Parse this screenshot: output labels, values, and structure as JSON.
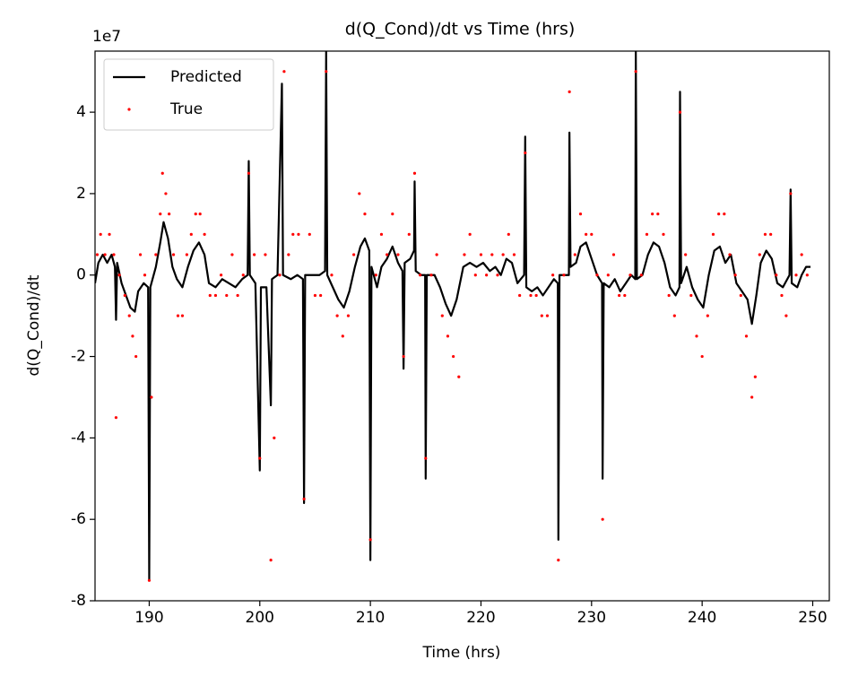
{
  "chart_data": {
    "type": "line",
    "title": "d(Q_Cond)/dt vs Time (hrs)",
    "xlabel": "Time (hrs)",
    "ylabel": "d(Q_Cond)/dt",
    "y_offset_label": "1e7",
    "xlim": [
      185.1,
      251.5
    ],
    "ylim": [
      -8,
      5.5
    ],
    "xticks": [
      190,
      200,
      210,
      220,
      230,
      240,
      250
    ],
    "yticks": [
      -8,
      -6,
      -4,
      -2,
      0,
      2,
      4
    ],
    "legend": "upper left",
    "series": [
      {
        "name": "Predicted",
        "color": "#000000",
        "kind": "line",
        "x": [
          185.1,
          185.4,
          185.8,
          186.2,
          186.6,
          186.9,
          187.0,
          187.1,
          187.5,
          187.9,
          188.3,
          188.7,
          189.0,
          189.5,
          189.9,
          190.0,
          190.1,
          190.6,
          191.0,
          191.3,
          191.7,
          192.1,
          192.5,
          193.0,
          193.5,
          194.0,
          194.5,
          195.0,
          195.4,
          196.0,
          196.6,
          197.2,
          197.8,
          198.4,
          198.9,
          199.0,
          199.1,
          199.6,
          200.0,
          200.1,
          200.6,
          201.0,
          201.1,
          201.6,
          202.0,
          202.1,
          202.8,
          203.4,
          203.9,
          204.0,
          204.1,
          204.8,
          205.4,
          205.9,
          206.0,
          206.1,
          206.6,
          207.1,
          207.6,
          208.1,
          208.6,
          209.1,
          209.5,
          209.9,
          210.0,
          210.1,
          210.6,
          211.0,
          211.5,
          212.0,
          212.5,
          212.9,
          213.0,
          213.1,
          213.6,
          213.95,
          214.0,
          214.1,
          214.6,
          214.95,
          215.0,
          215.1,
          215.8,
          216.3,
          216.8,
          217.3,
          217.8,
          218.4,
          219.0,
          219.6,
          220.2,
          220.8,
          221.3,
          221.8,
          222.3,
          222.8,
          223.3,
          223.9,
          224.0,
          224.1,
          224.6,
          225.1,
          225.6,
          226.1,
          226.6,
          226.95,
          227.0,
          227.1,
          227.6,
          227.95,
          228.0,
          228.1,
          228.6,
          229.0,
          229.5,
          230.0,
          230.5,
          230.95,
          231.0,
          231.1,
          231.6,
          232.1,
          232.6,
          233.1,
          233.6,
          233.95,
          234.0,
          234.1,
          234.6,
          235.1,
          235.6,
          236.1,
          236.6,
          237.1,
          237.6,
          237.95,
          238.0,
          238.1,
          238.6,
          239.1,
          239.6,
          240.1,
          240.6,
          241.1,
          241.6,
          242.1,
          242.6,
          243.1,
          243.6,
          244.1,
          244.5,
          244.9,
          245.3,
          245.8,
          246.3,
          246.8,
          247.3,
          247.9,
          248.0,
          248.1,
          248.6,
          249.0,
          249.4,
          249.8
        ],
        "values": [
          -0.2,
          0.3,
          0.5,
          0.3,
          0.5,
          0.2,
          -1.1,
          0.3,
          -0.2,
          -0.5,
          -0.8,
          -0.9,
          -0.4,
          -0.2,
          -0.3,
          -7.5,
          -0.3,
          0.2,
          0.8,
          1.3,
          0.9,
          0.2,
          -0.1,
          -0.3,
          0.2,
          0.6,
          0.8,
          0.5,
          -0.2,
          -0.3,
          -0.1,
          -0.2,
          -0.3,
          -0.1,
          0,
          2.8,
          0,
          -0.2,
          -4.8,
          -0.3,
          -0.3,
          -3.2,
          -0.1,
          0,
          4.7,
          0,
          -0.1,
          0,
          -0.1,
          -5.6,
          0,
          0,
          0,
          0.1,
          5.5,
          0,
          -0.3,
          -0.6,
          -0.8,
          -0.4,
          0.2,
          0.7,
          0.9,
          0.6,
          -7.0,
          0.2,
          -0.3,
          0.2,
          0.4,
          0.7,
          0.3,
          0.1,
          -2.3,
          0.3,
          0.4,
          0.6,
          2.3,
          0.1,
          0,
          0,
          -5.0,
          0,
          0,
          -0.3,
          -0.7,
          -1.0,
          -0.6,
          0.2,
          0.3,
          0.2,
          0.3,
          0.1,
          0.2,
          0,
          0.4,
          0.3,
          -0.2,
          0,
          3.4,
          -0.3,
          -0.4,
          -0.3,
          -0.5,
          -0.3,
          -0.1,
          -0.2,
          -6.5,
          0,
          0,
          0,
          3.5,
          0.2,
          0.3,
          0.7,
          0.8,
          0.4,
          0,
          -0.2,
          -5.0,
          -0.2,
          -0.3,
          -0.1,
          -0.4,
          -0.2,
          0,
          -0.1,
          5.5,
          -0.1,
          0,
          0.5,
          0.8,
          0.7,
          0.3,
          -0.3,
          -0.5,
          -0.3,
          4.5,
          -0.2,
          0.2,
          -0.3,
          -0.6,
          -0.8,
          0,
          0.6,
          0.7,
          0.3,
          0.5,
          -0.2,
          -0.4,
          -0.6,
          -1.2,
          -0.5,
          0.3,
          0.6,
          0.4,
          -0.2,
          -0.3,
          0,
          2.1,
          -0.2,
          -0.3,
          0,
          0.2,
          0.2
        ]
      },
      {
        "name": "True",
        "color": "#ff0000",
        "kind": "scatter",
        "x": [
          185.3,
          185.6,
          186.0,
          186.4,
          186.8,
          187.0,
          187.3,
          187.8,
          188.2,
          188.5,
          188.8,
          189.2,
          189.6,
          190.0,
          190.2,
          190.6,
          191.0,
          191.2,
          191.5,
          191.8,
          192.2,
          192.6,
          193.0,
          193.4,
          193.8,
          194.2,
          194.6,
          195.0,
          195.5,
          196.0,
          196.5,
          197.0,
          197.5,
          198.0,
          198.5,
          199.0,
          199.5,
          200.0,
          200.5,
          201.0,
          201.3,
          201.8,
          202.2,
          202.6,
          203.0,
          203.5,
          204.0,
          204.5,
          205.0,
          205.5,
          206.0,
          206.5,
          207.0,
          207.5,
          208.0,
          208.5,
          209.0,
          209.5,
          210.0,
          210.5,
          211.0,
          211.5,
          212.0,
          212.5,
          213.0,
          213.5,
          214.0,
          214.5,
          215.0,
          215.5,
          216.0,
          216.5,
          217.0,
          217.5,
          218.0,
          218.5,
          219.0,
          219.5,
          220.0,
          220.5,
          221.0,
          221.5,
          222.0,
          222.5,
          223.0,
          223.5,
          224.0,
          224.5,
          225.0,
          225.5,
          226.0,
          226.5,
          227.0,
          227.5,
          228.0,
          228.5,
          229.0,
          229.5,
          230.0,
          230.5,
          231.0,
          231.5,
          232.0,
          232.5,
          233.0,
          233.5,
          234.0,
          234.5,
          235.0,
          235.5,
          236.0,
          236.5,
          237.0,
          237.5,
          238.0,
          238.5,
          239.0,
          239.5,
          240.0,
          240.5,
          241.0,
          241.5,
          242.0,
          242.5,
          243.0,
          243.5,
          244.0,
          244.5,
          244.8,
          245.2,
          245.7,
          246.2,
          246.7,
          247.2,
          247.6,
          248.0,
          248.5,
          249.0,
          249.5
        ],
        "values": [
          0.5,
          1.0,
          0.5,
          1.0,
          0.5,
          -3.5,
          0,
          -0.5,
          -1.0,
          -1.5,
          -2.0,
          0.5,
          0,
          -7.5,
          -3.0,
          0.5,
          1.5,
          2.5,
          2.0,
          1.5,
          0.5,
          -1.0,
          -1.0,
          0.5,
          1.0,
          1.5,
          1.5,
          1.0,
          -0.5,
          -0.5,
          0,
          -0.5,
          0.5,
          -0.5,
          0,
          2.5,
          0.5,
          -4.5,
          0.5,
          -7.0,
          -4.0,
          0,
          5.0,
          0.5,
          1.0,
          1.0,
          -5.5,
          1.0,
          -0.5,
          -0.5,
          5.0,
          0,
          -1.0,
          -1.5,
          -1.0,
          0.5,
          2.0,
          1.5,
          -6.5,
          0,
          1.0,
          0.5,
          1.5,
          0.5,
          -2.0,
          1.0,
          2.5,
          0,
          -4.5,
          0,
          0.5,
          -1.0,
          -1.5,
          -2.0,
          -2.5,
          0.5,
          1.0,
          0,
          0.5,
          0,
          0.5,
          0,
          0.5,
          1.0,
          0.5,
          -0.5,
          3.0,
          -0.5,
          -0.5,
          -1.0,
          -1.0,
          0,
          -7.0,
          0,
          4.5,
          0.5,
          1.5,
          1.0,
          1.0,
          0,
          -6.0,
          0,
          0.5,
          -0.5,
          -0.5,
          0,
          5.0,
          0,
          1.0,
          1.5,
          1.5,
          1.0,
          -0.5,
          -1.0,
          4.0,
          0.5,
          -0.5,
          -1.5,
          -2.0,
          -1.0,
          1.0,
          1.5,
          1.5,
          0.5,
          0,
          -0.5,
          -1.5,
          -3.0,
          -2.5,
          0.5,
          1.0,
          1.0,
          0,
          -0.5,
          -1.0,
          2.0,
          0,
          0.5,
          0
        ]
      }
    ]
  }
}
